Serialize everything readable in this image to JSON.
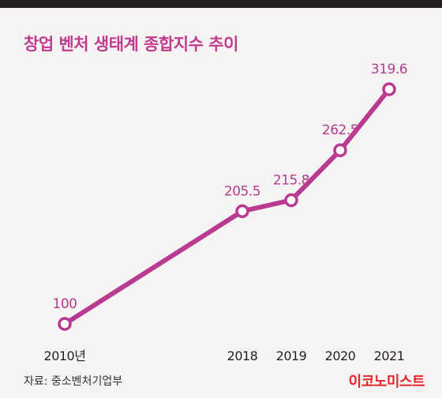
{
  "title": "창업 벤처 생태계 종합지수 추이",
  "source": "자료: 중소벤처기업부",
  "brand": "이코노미스트",
  "colors": {
    "accent": "#b83a91",
    "title": "#c13b8f",
    "brand": "#e8232a",
    "background": "#f6f4f3"
  },
  "chart_data": {
    "type": "line",
    "title": "창업 벤처 생태계 종합지수 추이",
    "categories": [
      "2010년",
      "2018",
      "2019",
      "2020",
      "2021"
    ],
    "x": [
      2010,
      2018,
      2019,
      2020,
      2021
    ],
    "values": [
      100,
      205.5,
      215.8,
      262.5,
      319.6
    ],
    "value_labels": [
      "100",
      "205.5",
      "215.8",
      "262.5",
      "319.6"
    ],
    "xlabel": "",
    "ylabel": "",
    "grid": false,
    "legend": "none"
  }
}
